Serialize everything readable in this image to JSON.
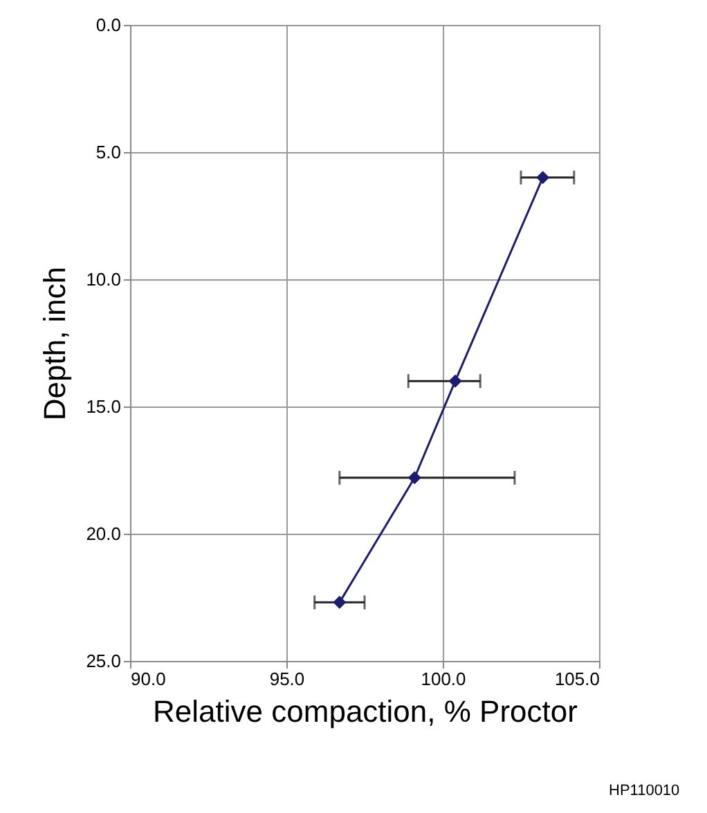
{
  "chart_data": {
    "type": "line",
    "xlabel": "Relative compaction, % Proctor",
    "ylabel": "Depth, inch",
    "x": [
      103.2,
      100.4,
      99.1,
      96.7
    ],
    "series": [
      {
        "color": "#1c1c6e",
        "values": [
          6.0,
          14.0,
          17.8,
          22.7
        ],
        "xerrors": [
          [
            102.5,
            104.2
          ],
          [
            98.9,
            101.2
          ],
          [
            96.7,
            102.3
          ],
          [
            95.9,
            97.5
          ]
        ]
      }
    ],
    "xlim": [
      90,
      105
    ],
    "xticks": [
      {
        "value": 90,
        "label": "90.0"
      },
      {
        "value": 95,
        "label": "95.0"
      },
      {
        "value": 100,
        "label": "100.0"
      },
      {
        "value": 105,
        "label": "105.0"
      }
    ],
    "ylim": [
      25,
      0
    ],
    "yticks": [
      {
        "value": 0,
        "label": "0.0"
      },
      {
        "value": 5,
        "label": "5.0"
      },
      {
        "value": 10,
        "label": "10.0"
      },
      {
        "value": 15,
        "label": "15.0"
      },
      {
        "value": 20,
        "label": "20.0"
      },
      {
        "value": 25,
        "label": "25.0"
      }
    ],
    "grid": true,
    "marker": "diamond",
    "line_style": "solid",
    "annotations": [
      "HP110010"
    ]
  }
}
